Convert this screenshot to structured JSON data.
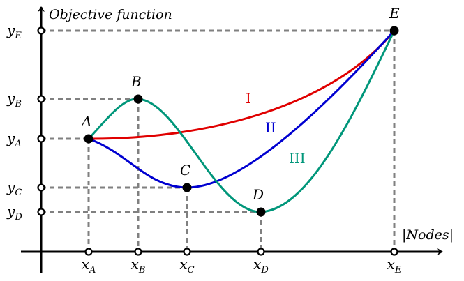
{
  "ylabel": "Objective function",
  "xlabel": "|Nodes|",
  "points": [
    {
      "id": "A",
      "label": "A",
      "x_tick": {
        "main": "x",
        "sub": "A"
      },
      "y_tick": {
        "main": "y",
        "sub": "A"
      }
    },
    {
      "id": "B",
      "label": "B",
      "x_tick": {
        "main": "x",
        "sub": "B"
      },
      "y_tick": {
        "main": "y",
        "sub": "B"
      }
    },
    {
      "id": "C",
      "label": "C",
      "x_tick": {
        "main": "x",
        "sub": "C"
      },
      "y_tick": {
        "main": "y",
        "sub": "C"
      }
    },
    {
      "id": "D",
      "label": "D",
      "x_tick": {
        "main": "x",
        "sub": "D"
      },
      "y_tick": {
        "main": "y",
        "sub": "D"
      }
    },
    {
      "id": "E",
      "label": "E",
      "x_tick": {
        "main": "x",
        "sub": "E"
      },
      "y_tick": {
        "main": "y",
        "sub": "E"
      }
    }
  ],
  "curves": [
    {
      "id": "I",
      "label": "I",
      "color": "#e00000",
      "through": [
        "A",
        "E"
      ]
    },
    {
      "id": "II",
      "label": "II",
      "color": "#0000d0",
      "through": [
        "A",
        "C",
        "E"
      ]
    },
    {
      "id": "III",
      "label": "III",
      "color": "#00967a",
      "through": [
        "A",
        "B",
        "D",
        "E"
      ]
    }
  ],
  "colors": {
    "axis": "#000000",
    "guide": "#808080",
    "point": "#000000"
  }
}
